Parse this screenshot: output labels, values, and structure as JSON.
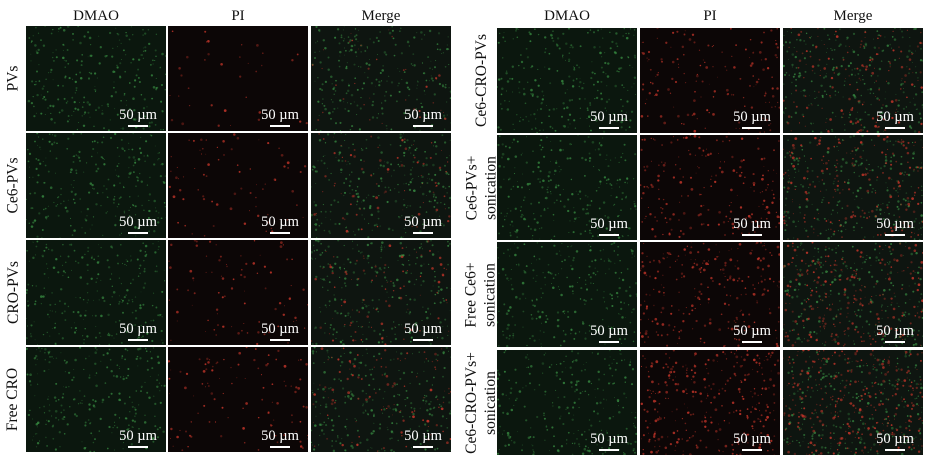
{
  "panels": [
    {
      "columns": [
        "DMAO",
        "PI",
        "Merge"
      ],
      "rows": [
        {
          "label": [
            "PVs"
          ],
          "pi_level": 0.05
        },
        {
          "label": [
            "Ce6-PVs"
          ],
          "pi_level": 0.18
        },
        {
          "label": [
            "CRO-PVs"
          ],
          "pi_level": 0.22
        },
        {
          "label": [
            "Free CRO"
          ],
          "pi_level": 0.28
        }
      ]
    },
    {
      "columns": [
        "DMAO",
        "PI",
        "Merge"
      ],
      "rows": [
        {
          "label": [
            "Ce6-CRO-PVs"
          ],
          "pi_level": 0.45
        },
        {
          "label": [
            "Ce6-PVs+",
            "sonication"
          ],
          "pi_level": 0.6
        },
        {
          "label": [
            "Free Ce6+",
            "sonication"
          ],
          "pi_level": 0.75
        },
        {
          "label": [
            "Ce6-CRO-PVs+",
            "sonication"
          ],
          "pi_level": 1.0
        }
      ]
    }
  ],
  "scale_bar_label": "50 µm",
  "colors": {
    "dmao_signal": "#3f9f4a",
    "pi_signal": "#c8362a",
    "background": "#ffffff"
  }
}
